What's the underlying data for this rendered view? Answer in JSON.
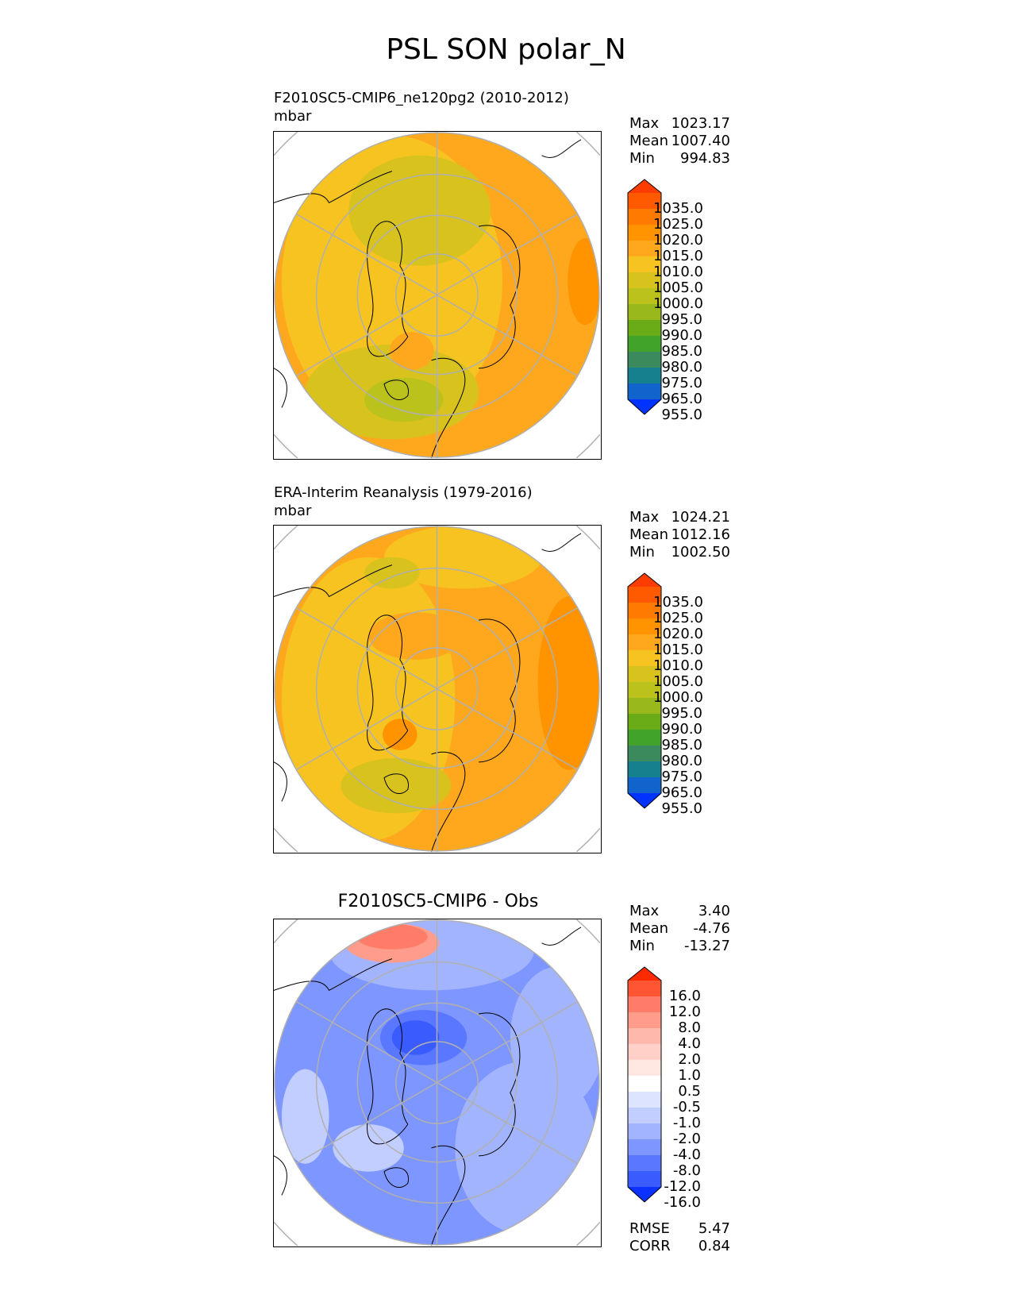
{
  "title": "PSL SON polar_N",
  "panels": [
    {
      "id": "test",
      "title_line1": "F2010SC5-CMIP6_ne120pg2 (2010-2012)",
      "title_line2": "mbar",
      "stats": {
        "max_label": "Max",
        "max": "1023.17",
        "mean_label": "Mean",
        "mean": "1007.40",
        "min_label": "Min",
        "min": "994.83"
      },
      "colorbar": {
        "ticks": [
          "1035.0",
          "1025.0",
          "1020.0",
          "1015.0",
          "1010.0",
          "1005.0",
          "1000.0",
          "995.0",
          "990.0",
          "985.0",
          "980.0",
          "975.0",
          "965.0",
          "955.0"
        ],
        "colors": [
          "#ff3c00",
          "#ff5a00",
          "#ff7a00",
          "#ff9400",
          "#ffa81e",
          "#f6c320",
          "#d8c21e",
          "#bcc21c",
          "#98b81c",
          "#6aab18",
          "#42a32a",
          "#3a8a5e",
          "#16808f",
          "#1164cc",
          "#0033ff"
        ]
      }
    },
    {
      "id": "ref",
      "title_line1": "ERA-Interim Reanalysis (1979-2016)",
      "title_line2": "mbar",
      "stats": {
        "max_label": "Max",
        "max": "1024.21",
        "mean_label": "Mean",
        "mean": "1012.16",
        "min_label": "Min",
        "min": "1002.50"
      },
      "colorbar": {
        "ticks": [
          "1035.0",
          "1025.0",
          "1020.0",
          "1015.0",
          "1010.0",
          "1005.0",
          "1000.0",
          "995.0",
          "990.0",
          "985.0",
          "980.0",
          "975.0",
          "965.0",
          "955.0"
        ],
        "colors": [
          "#ff3c00",
          "#ff5a00",
          "#ff7a00",
          "#ff9400",
          "#ffa81e",
          "#f6c320",
          "#d8c21e",
          "#bcc21c",
          "#98b81c",
          "#6aab18",
          "#42a32a",
          "#3a8a5e",
          "#16808f",
          "#1164cc",
          "#0033ff"
        ]
      }
    },
    {
      "id": "diff",
      "title_center": "F2010SC5-CMIP6 - Obs",
      "stats": {
        "max_label": "Max",
        "max": "3.40",
        "mean_label": "Mean",
        "mean": "-4.76",
        "min_label": "Min",
        "min": "-13.27"
      },
      "colorbar": {
        "ticks": [
          "16.0",
          "12.0",
          "8.0",
          "4.0",
          "2.0",
          "1.0",
          "0.5",
          "-0.5",
          "-1.0",
          "-2.0",
          "-4.0",
          "-8.0",
          "-12.0",
          "-16.0"
        ],
        "colors": [
          "#ff2a00",
          "#ff5535",
          "#ff7c68",
          "#ff9c8c",
          "#ffb8ac",
          "#ffd0c8",
          "#ffe8e2",
          "#ffffff",
          "#dde4ff",
          "#c2ceff",
          "#a3b4ff",
          "#7e96ff",
          "#5a78ff",
          "#3a5cff",
          "#0b32ff"
        ]
      },
      "footer": {
        "rmse_label": "RMSE",
        "rmse": "5.47",
        "corr_label": "CORR",
        "corr": "0.84"
      }
    }
  ],
  "chart_data": [
    {
      "type": "heatmap",
      "title": "F2010SC5-CMIP6_ne120pg2 (2010-2012)",
      "units": "mbar",
      "projection": "north polar stereographic",
      "levels": [
        955,
        965,
        975,
        980,
        985,
        990,
        995,
        1000,
        1005,
        1010,
        1015,
        1020,
        1025,
        1035
      ],
      "max": 1023.17,
      "mean": 1007.4,
      "min": 994.83
    },
    {
      "type": "heatmap",
      "title": "ERA-Interim Reanalysis (1979-2016)",
      "units": "mbar",
      "projection": "north polar stereographic",
      "levels": [
        955,
        965,
        975,
        980,
        985,
        990,
        995,
        1000,
        1005,
        1010,
        1015,
        1020,
        1025,
        1035
      ],
      "max": 1024.21,
      "mean": 1012.16,
      "min": 1002.5
    },
    {
      "type": "heatmap",
      "title": "F2010SC5-CMIP6 - Obs",
      "projection": "north polar stereographic",
      "levels": [
        -16,
        -12,
        -8,
        -4,
        -2,
        -1,
        -0.5,
        0.5,
        1,
        2,
        4,
        8,
        12,
        16
      ],
      "max": 3.4,
      "mean": -4.76,
      "min": -13.27,
      "rmse": 5.47,
      "corr": 0.84
    }
  ]
}
